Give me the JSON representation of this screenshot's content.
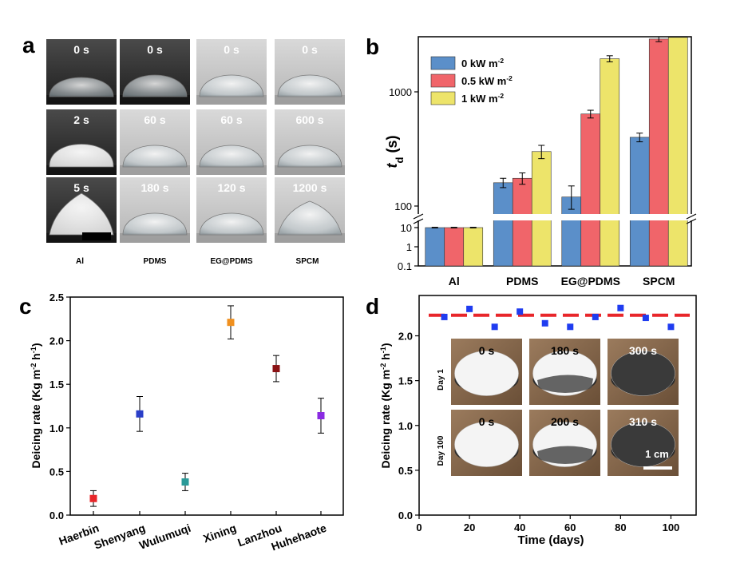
{
  "panels": {
    "a": "a",
    "b": "b",
    "c": "c",
    "d": "d"
  },
  "panel_a": {
    "rows": [
      [
        "0 s",
        "0 s",
        "0 s",
        "0 s"
      ],
      [
        "2 s",
        "60 s",
        "60 s",
        "600 s"
      ],
      [
        "5 s",
        "180 s",
        "120 s",
        "1200 s"
      ]
    ],
    "columns": [
      "Al",
      "PDMS",
      "EG@PDMS",
      "SPCM"
    ],
    "colors": {
      "dark_bg": "#2c2c2c",
      "light_bg": "#cfcfcf",
      "drop": "#e8eef0"
    }
  },
  "panel_d_inset": {
    "rows": [
      {
        "label": "Day 1",
        "times": [
          "0 s",
          "180 s",
          "300 s"
        ]
      },
      {
        "label": "Day 100",
        "times": [
          "0 s",
          "200 s",
          "310 s"
        ]
      }
    ],
    "scale_bar": "1 cm"
  },
  "chart_data": [
    {
      "type": "bar",
      "panel": "b",
      "categories": [
        "Al",
        "PDMS",
        "EG@PDMS",
        "SPCM"
      ],
      "ylabel": "t_d (s)",
      "yscale": "broken: linear 0.1–10 segment, log 100–3000 segment",
      "yticks": [
        "0.1",
        "1",
        "10",
        "100",
        "1000"
      ],
      "legend_position": "top-left",
      "series": [
        {
          "name": "0 kW m-2",
          "color": "#5b8fc9",
          "values": [
            10,
            160,
            120,
            400
          ],
          "errors": [
            0.4,
            15,
            30,
            35
          ]
        },
        {
          "name": "0.5 kW m-2",
          "color": "#f0656a",
          "values": [
            10,
            175,
            640,
            2900
          ],
          "errors": [
            0.4,
            20,
            50,
            150
          ]
        },
        {
          "name": "1 kW m-2",
          "color": "#ede46a",
          "values": [
            10,
            300,
            1950,
            3000
          ],
          "errors": [
            0.4,
            40,
            120,
            0
          ]
        }
      ]
    },
    {
      "type": "scatter",
      "panel": "c",
      "categories": [
        "Haerbin",
        "Shenyang",
        "Wulumuqi",
        "Xining",
        "Lanzhou",
        "Huhehaote"
      ],
      "ylabel": "Deicing rate (Kg m-2 h-1)",
      "ylim": [
        0.0,
        2.5
      ],
      "yticks": [
        "0.0",
        "0.5",
        "1.0",
        "1.5",
        "2.0",
        "2.5"
      ],
      "points": [
        {
          "name": "Haerbin",
          "y": 0.19,
          "err": 0.09,
          "color": "#e8262a"
        },
        {
          "name": "Shenyang",
          "y": 1.16,
          "err": 0.2,
          "color": "#2a3fc8"
        },
        {
          "name": "Wulumuqi",
          "y": 0.38,
          "err": 0.1,
          "color": "#2a9a98"
        },
        {
          "name": "Xining",
          "y": 2.21,
          "err": 0.19,
          "color": "#f0901f"
        },
        {
          "name": "Lanzhou",
          "y": 1.68,
          "err": 0.15,
          "color": "#8a1214"
        },
        {
          "name": "Huhehaote",
          "y": 1.14,
          "err": 0.2,
          "color": "#8a2be2"
        }
      ]
    },
    {
      "type": "scatter",
      "panel": "d",
      "xlabel": "Time (days)",
      "ylabel": "Deicing rate (Kg m-2 h-1)",
      "xlim": [
        0,
        110
      ],
      "ylim": [
        0.0,
        2.45
      ],
      "xticks": [
        "0",
        "20",
        "40",
        "60",
        "80",
        "100"
      ],
      "yticks": [
        "0.0",
        "0.5",
        "1.0",
        "1.5",
        "2.0"
      ],
      "x": [
        10,
        20,
        30,
        40,
        50,
        60,
        70,
        80,
        90,
        100
      ],
      "y": [
        2.21,
        2.3,
        2.1,
        2.27,
        2.14,
        2.1,
        2.21,
        2.31,
        2.2,
        2.1
      ],
      "point_color": "#1f3cf0",
      "reference_line": {
        "y": 2.23,
        "color": "#e8262a",
        "style": "dashed"
      }
    }
  ]
}
